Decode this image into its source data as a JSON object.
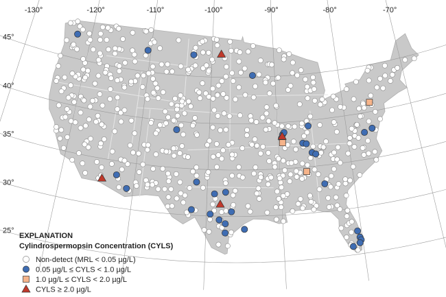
{
  "map": {
    "longitude_labels": [
      {
        "value": -130,
        "label": "-130°"
      },
      {
        "value": -120,
        "label": "-120°"
      },
      {
        "value": -110,
        "label": "-110°"
      },
      {
        "value": -100,
        "label": "-100°"
      },
      {
        "value": -90,
        "label": "-90°"
      },
      {
        "value": -80,
        "label": "-80°"
      },
      {
        "value": -70,
        "label": "-70°"
      }
    ],
    "latitude_labels": [
      {
        "value": 45,
        "label": "45°"
      },
      {
        "value": 40,
        "label": "40°"
      },
      {
        "value": 35,
        "label": "35°"
      },
      {
        "value": 30,
        "label": "30°"
      },
      {
        "value": 25,
        "label": "25°"
      }
    ],
    "legend": {
      "title": "EXPLANATION",
      "subtitle": "Cylindrospermopsin Concentration (CYLS)",
      "items": [
        {
          "label": "Non-detect (MRL < 0.05 µg/L)",
          "color": "#ffffff",
          "shape": "circle"
        },
        {
          "label": "0.05 µg/L ≤  CYLS < 1.0 µg/L",
          "color": "#3f6db3",
          "shape": "circle"
        },
        {
          "label": "1.0 µg/L ≤ CYLS < 2.0 µg/L",
          "color": "#f6b48a",
          "shape": "square"
        },
        {
          "label": "CYLS ≥ 2.0 µg/L",
          "color": "#c0392b",
          "shape": "triangle"
        }
      ]
    },
    "detections": [
      {
        "class": 1,
        "points": [
          [
            -122.3,
            47.6
          ],
          [
            -110.5,
            47.3
          ],
          [
            -103,
            47.3
          ],
          [
            -93.5,
            45.2
          ],
          [
            -104.8,
            39.1
          ],
          [
            -112.5,
            33.5
          ],
          [
            -110.9,
            32.2
          ],
          [
            -101.5,
            33.6
          ],
          [
            -99,
            32.4
          ],
          [
            -97.5,
            32.6
          ],
          [
            -102,
            30.6
          ],
          [
            -99.5,
            30.2
          ],
          [
            -98.3,
            29.6
          ],
          [
            -97.5,
            29.2
          ],
          [
            -96.7,
            30.5
          ],
          [
            -95,
            28.6
          ],
          [
            -97.5,
            28.2
          ],
          [
            -89.3,
            38.7
          ],
          [
            -89.1,
            38.9
          ],
          [
            -89.5,
            38.3
          ],
          [
            -86.5,
            37.6
          ],
          [
            -86,
            37.5
          ],
          [
            -85.5,
            39.4
          ],
          [
            -85.3,
            36.5
          ],
          [
            -84.8,
            36.3
          ],
          [
            -84,
            33
          ],
          [
            -77.5,
            37.9
          ],
          [
            -76.3,
            38.2
          ],
          [
            -80.5,
            27.5
          ],
          [
            -80.3,
            26.8
          ],
          [
            -80.2,
            26.5
          ],
          [
            -80.4,
            26.2
          ],
          [
            -81.3,
            25.9
          ]
        ]
      },
      {
        "class": 2,
        "points": [
          [
            -89.4,
            37.8
          ],
          [
            -86.3,
            34.5
          ],
          [
            -76,
            41
          ]
        ]
      },
      {
        "class": 3,
        "points": [
          [
            -98.5,
            47.5
          ],
          [
            -114.4,
            32.9
          ],
          [
            -98.2,
            31.3
          ],
          [
            -89.4,
            38.5
          ]
        ]
      }
    ]
  }
}
